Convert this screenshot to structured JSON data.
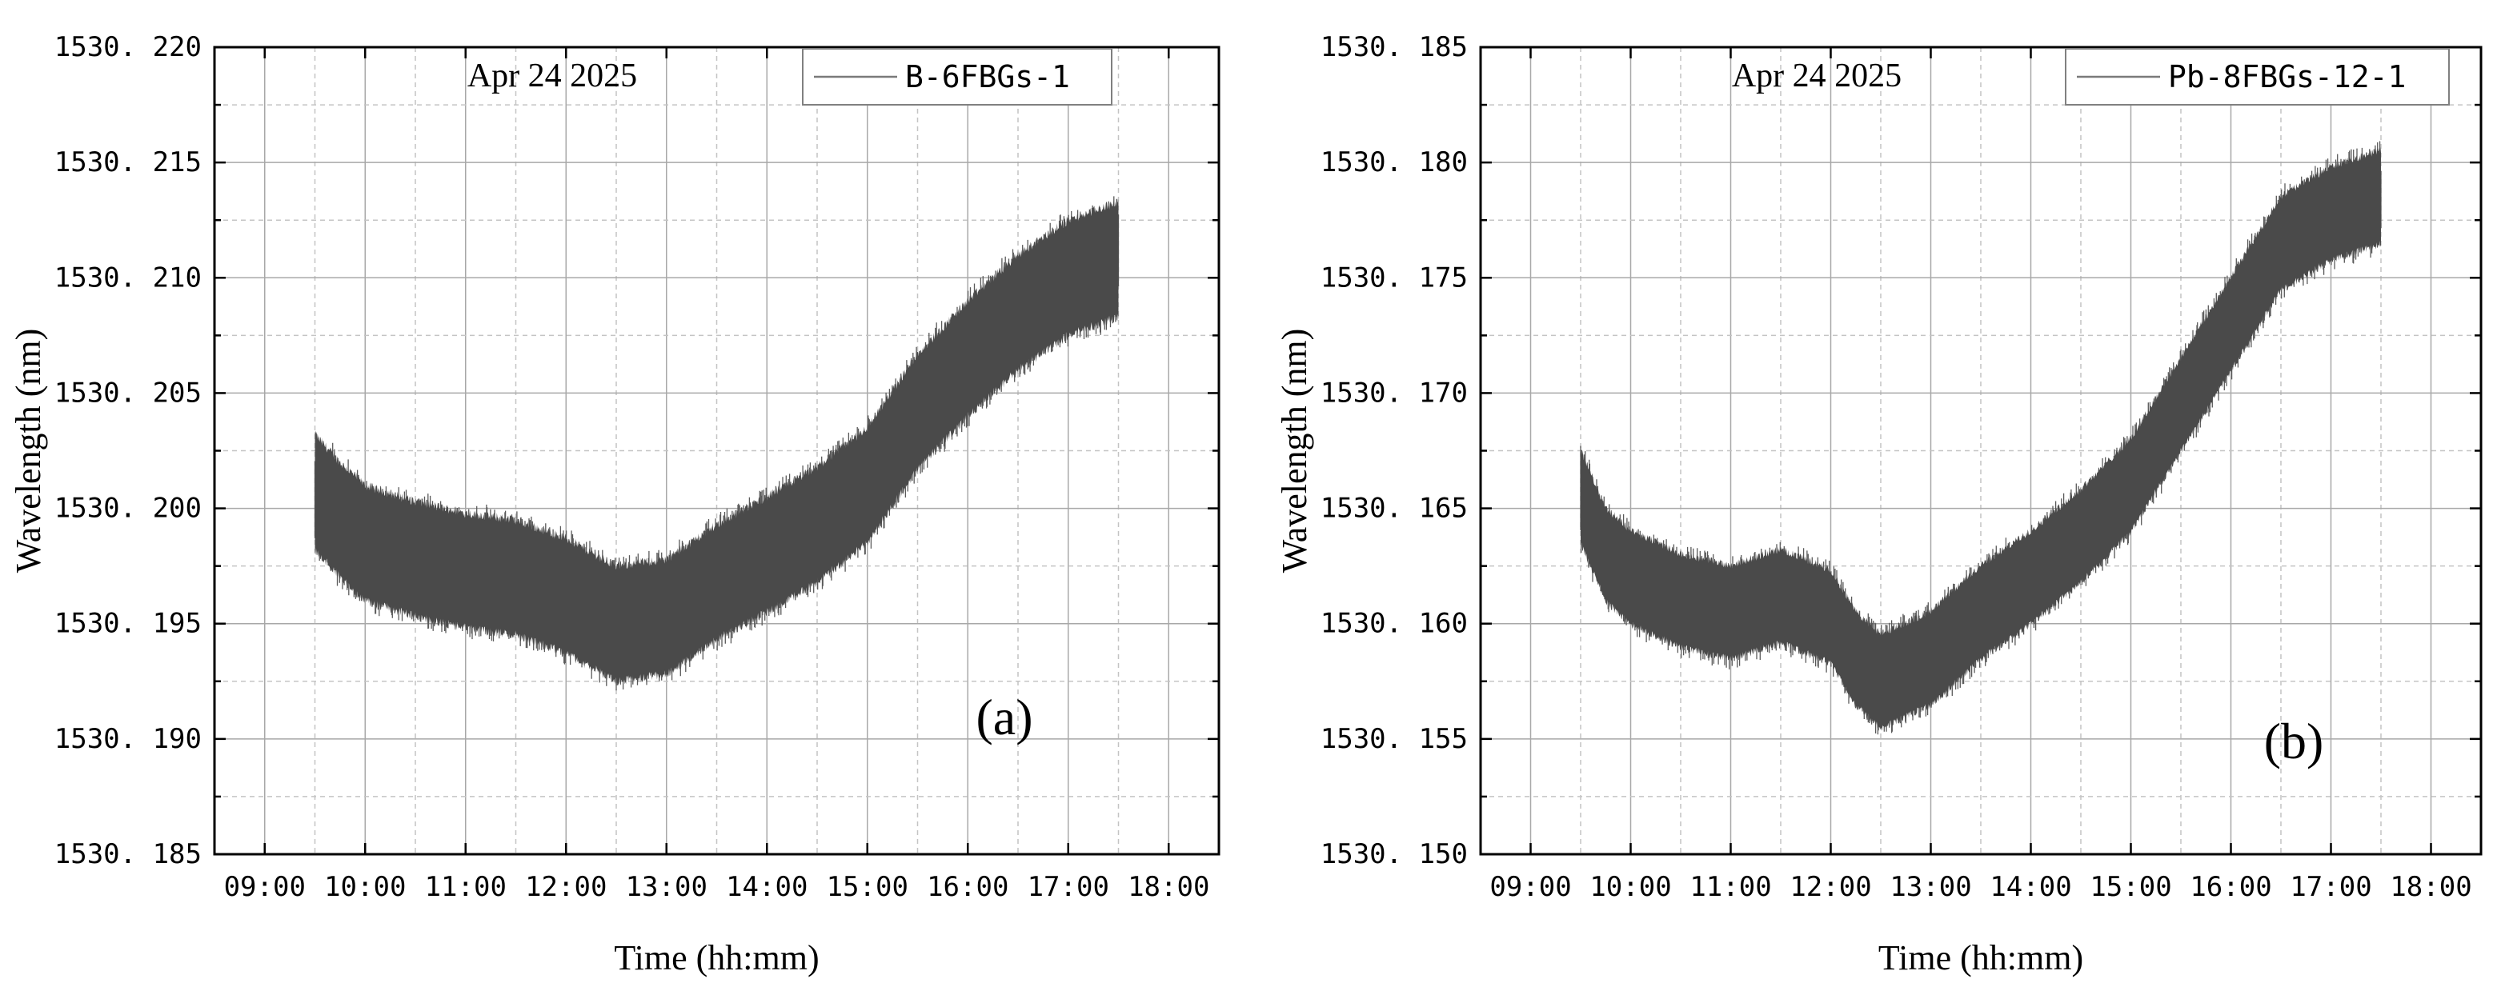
{
  "chart_data": [
    {
      "type": "line",
      "panel_label": "(a)",
      "date_annotation": "Apr 24 2025",
      "xlabel": "Time (hh:mm)",
      "ylabel": "Wavelength (nm)",
      "xlim": [
        8.5,
        18.5
      ],
      "ylim": [
        1530.185,
        1530.22
      ],
      "x_ticks": [
        9,
        10,
        11,
        12,
        13,
        14,
        15,
        16,
        17,
        18
      ],
      "x_tick_labels": [
        "09:00",
        "10:00",
        "11:00",
        "12:00",
        "13:00",
        "14:00",
        "15:00",
        "16:00",
        "17:00",
        "18:00"
      ],
      "y_ticks": [
        1530.185,
        1530.19,
        1530.195,
        1530.2,
        1530.205,
        1530.21,
        1530.215,
        1530.22
      ],
      "y_tick_labels": [
        "1530. 185",
        "1530. 190",
        "1530. 195",
        "1530. 200",
        "1530. 205",
        "1530. 210",
        "1530. 215",
        "1530. 220"
      ],
      "grid": true,
      "legend_position": "top-right",
      "series": [
        {
          "name": "B-6FBGs-1",
          "color": "#4a4a4a",
          "x": [
            9.5,
            9.75,
            10.0,
            10.5,
            11.0,
            11.5,
            12.0,
            12.5,
            13.0,
            13.5,
            14.0,
            14.5,
            15.0,
            15.5,
            16.0,
            16.5,
            17.0,
            17.5
          ],
          "center": [
            1530.2007,
            1530.1995,
            1530.1985,
            1530.1978,
            1530.1973,
            1530.197,
            1530.1962,
            1530.195,
            1530.1953,
            1530.1968,
            1530.198,
            1530.1993,
            1530.201,
            1530.2042,
            1530.2065,
            1530.2085,
            1530.21,
            1530.2108
          ],
          "band_half_width": 0.0027,
          "spike": 0.003
        }
      ]
    },
    {
      "type": "line",
      "panel_label": "(b)",
      "date_annotation": "Apr 24 2025",
      "xlabel": "Time (hh:mm)",
      "ylabel": "Wavelength (nm)",
      "xlim": [
        8.5,
        18.5
      ],
      "ylim": [
        1530.15,
        1530.185
      ],
      "x_ticks": [
        9,
        10,
        11,
        12,
        13,
        14,
        15,
        16,
        17,
        18
      ],
      "x_tick_labels": [
        "09:00",
        "10:00",
        "11:00",
        "12:00",
        "13:00",
        "14:00",
        "15:00",
        "16:00",
        "17:00",
        "18:00"
      ],
      "y_ticks": [
        1530.15,
        1530.155,
        1530.16,
        1530.165,
        1530.17,
        1530.175,
        1530.18,
        1530.185
      ],
      "y_tick_labels": [
        "1530. 150",
        "1530. 155",
        "1530. 160",
        "1530. 165",
        "1530. 170",
        "1530. 175",
        "1530. 180",
        "1530. 185"
      ],
      "grid": true,
      "legend_position": "top-right",
      "series": [
        {
          "name": "Pb-8FBGs-12-1",
          "color": "#4a4a4a",
          "x": [
            9.5,
            9.75,
            10.0,
            10.5,
            11.0,
            11.5,
            12.0,
            12.25,
            12.5,
            13.0,
            13.5,
            14.0,
            14.5,
            15.0,
            15.5,
            16.0,
            16.5,
            17.0,
            17.5
          ],
          "center": [
            1530.1655,
            1530.163,
            1530.162,
            1530.161,
            1530.1605,
            1530.1612,
            1530.1603,
            1530.1585,
            1530.1575,
            1530.1585,
            1530.1605,
            1530.162,
            1530.1638,
            1530.166,
            1530.1695,
            1530.173,
            1530.1765,
            1530.1778,
            1530.1785
          ],
          "band_half_width": 0.0022,
          "spike": 0.0025
        }
      ]
    }
  ]
}
